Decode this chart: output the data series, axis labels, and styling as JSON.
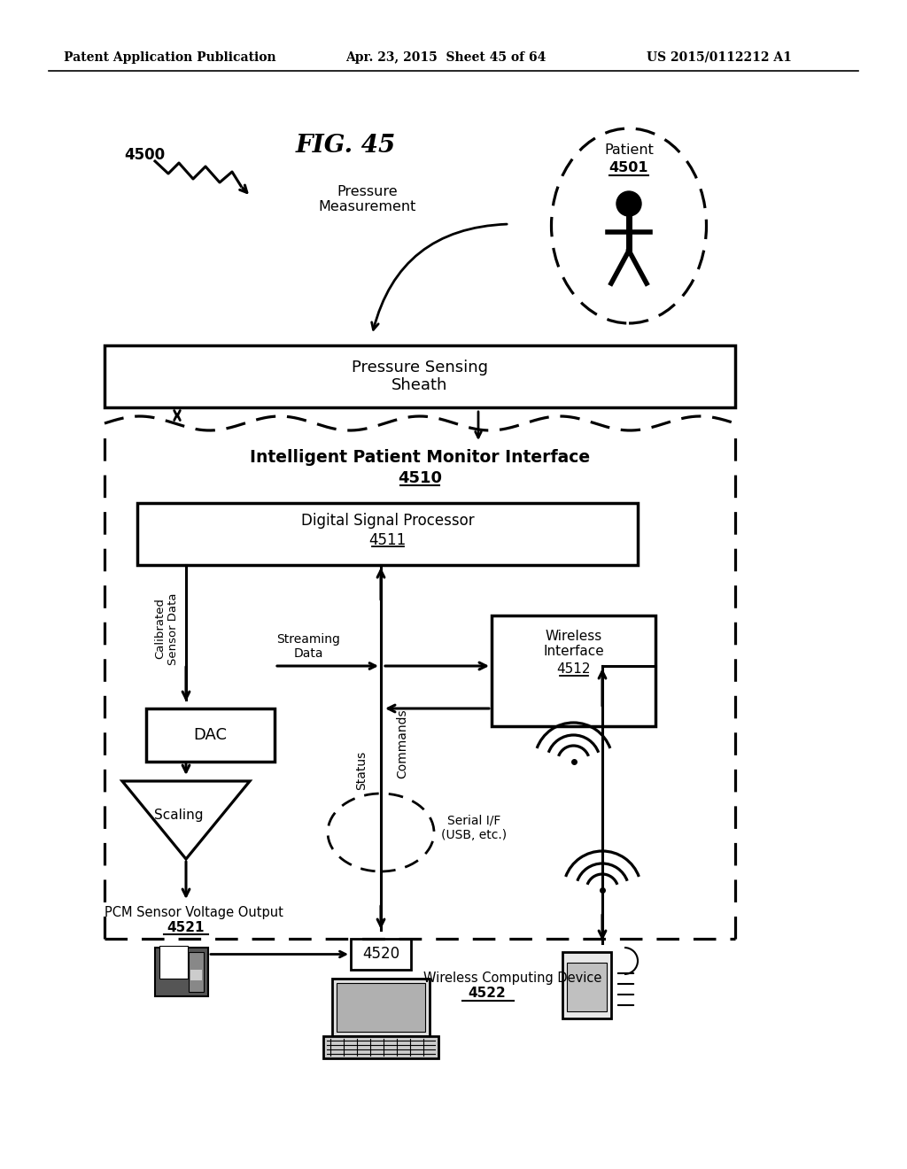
{
  "header_left": "Patent Application Publication",
  "header_mid": "Apr. 23, 2015  Sheet 45 of 64",
  "header_right": "US 2015/0112212 A1",
  "fig_title": "FIG. 45",
  "fig_number": "4500",
  "patient_label": "Patient",
  "patient_number": "4501",
  "pressure_label": "Pressure\nMeasurement",
  "sheath_label": "Pressure Sensing\nSheath",
  "ipmi_label": "Intelligent Patient Monitor Interface",
  "ipmi_number": "4510",
  "dsp_label": "Digital Signal Processor",
  "dsp_number": "4511",
  "dac_label": "DAC",
  "scaling_label": "Scaling",
  "wireless_label": "Wireless\nInterface",
  "wireless_number": "4512",
  "calibrated_label": "Calibrated\nSensor Data",
  "streaming_label": "Streaming\nData",
  "status_label": "Status",
  "commands_label": "Commands",
  "serial_label": "Serial I/F\n(USB, etc.)",
  "pcm_label": "PCM Sensor Voltage Output",
  "pcm_number": "4521",
  "laptop_number": "4520",
  "wireless_device_label": "Wireless Computing Device",
  "wireless_device_number": "4522",
  "bg_color": "#ffffff",
  "line_color": "#000000"
}
